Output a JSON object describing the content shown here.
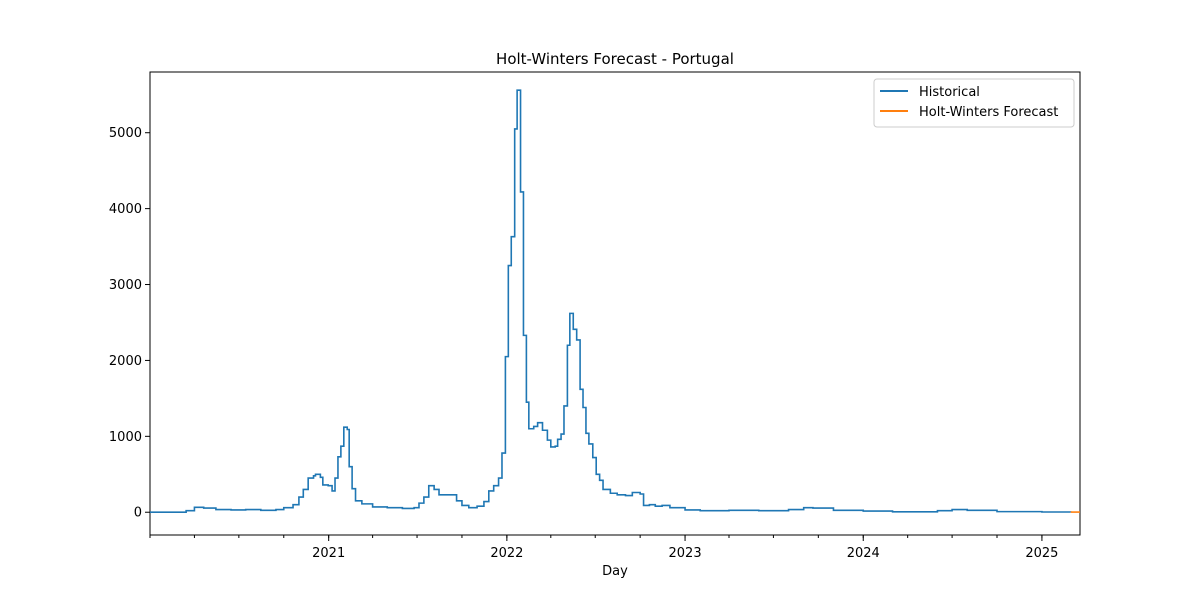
{
  "chart_data": {
    "type": "line",
    "title": "Holt-Winters Forecast - Portugal",
    "xlabel": "Day",
    "ylabel": "",
    "xlim": [
      "2020-01-01",
      "2025-03-20"
    ],
    "ylim": [
      -300,
      5800
    ],
    "x_ticks": [
      {
        "date": "2021-01-01",
        "label": "2021"
      },
      {
        "date": "2022-01-01",
        "label": "2022"
      },
      {
        "date": "2023-01-01",
        "label": "2023"
      },
      {
        "date": "2024-01-01",
        "label": "2024"
      },
      {
        "date": "2025-01-01",
        "label": "2025"
      }
    ],
    "y_ticks": [
      0,
      1000,
      2000,
      3000,
      4000,
      5000
    ],
    "grid": false,
    "legend": "top-right",
    "series": [
      {
        "name": "Historical",
        "color": "#1f77b4",
        "points": [
          [
            "2020-01-01",
            0
          ],
          [
            "2020-03-01",
            0
          ],
          [
            "2020-03-15",
            20
          ],
          [
            "2020-04-01",
            65
          ],
          [
            "2020-04-20",
            55
          ],
          [
            "2020-05-15",
            35
          ],
          [
            "2020-06-15",
            30
          ],
          [
            "2020-07-15",
            35
          ],
          [
            "2020-08-15",
            25
          ],
          [
            "2020-09-15",
            35
          ],
          [
            "2020-10-01",
            60
          ],
          [
            "2020-10-20",
            100
          ],
          [
            "2020-11-01",
            200
          ],
          [
            "2020-11-10",
            300
          ],
          [
            "2020-11-20",
            450
          ],
          [
            "2020-12-01",
            480
          ],
          [
            "2020-12-05",
            500
          ],
          [
            "2020-12-15",
            460
          ],
          [
            "2020-12-20",
            360
          ],
          [
            "2020-12-31",
            350
          ],
          [
            "2021-01-08",
            280
          ],
          [
            "2021-01-14",
            450
          ],
          [
            "2021-01-20",
            730
          ],
          [
            "2021-01-26",
            870
          ],
          [
            "2021-02-01",
            1120
          ],
          [
            "2021-02-08",
            1090
          ],
          [
            "2021-02-12",
            600
          ],
          [
            "2021-02-18",
            310
          ],
          [
            "2021-02-25",
            150
          ],
          [
            "2021-03-10",
            110
          ],
          [
            "2021-04-01",
            70
          ],
          [
            "2021-05-01",
            60
          ],
          [
            "2021-06-01",
            50
          ],
          [
            "2021-06-25",
            60
          ],
          [
            "2021-07-05",
            120
          ],
          [
            "2021-07-15",
            200
          ],
          [
            "2021-07-25",
            350
          ],
          [
            "2021-08-05",
            300
          ],
          [
            "2021-08-15",
            230
          ],
          [
            "2021-09-01",
            230
          ],
          [
            "2021-09-20",
            150
          ],
          [
            "2021-10-01",
            90
          ],
          [
            "2021-10-15",
            60
          ],
          [
            "2021-11-01",
            80
          ],
          [
            "2021-11-15",
            140
          ],
          [
            "2021-11-25",
            280
          ],
          [
            "2021-12-05",
            350
          ],
          [
            "2021-12-15",
            450
          ],
          [
            "2021-12-22",
            780
          ],
          [
            "2021-12-29",
            2050
          ],
          [
            "2022-01-04",
            3250
          ],
          [
            "2022-01-10",
            3630
          ],
          [
            "2022-01-17",
            5050
          ],
          [
            "2022-01-22",
            5560
          ],
          [
            "2022-01-29",
            4220
          ],
          [
            "2022-02-04",
            2330
          ],
          [
            "2022-02-10",
            1450
          ],
          [
            "2022-02-15",
            1100
          ],
          [
            "2022-02-25",
            1130
          ],
          [
            "2022-03-05",
            1180
          ],
          [
            "2022-03-15",
            1080
          ],
          [
            "2022-03-25",
            950
          ],
          [
            "2022-04-01",
            860
          ],
          [
            "2022-04-10",
            870
          ],
          [
            "2022-04-15",
            960
          ],
          [
            "2022-04-22",
            1030
          ],
          [
            "2022-04-28",
            1400
          ],
          [
            "2022-05-05",
            2200
          ],
          [
            "2022-05-10",
            2620
          ],
          [
            "2022-05-17",
            2410
          ],
          [
            "2022-05-24",
            2270
          ],
          [
            "2022-05-31",
            1620
          ],
          [
            "2022-06-06",
            1380
          ],
          [
            "2022-06-12",
            1040
          ],
          [
            "2022-06-18",
            900
          ],
          [
            "2022-06-26",
            720
          ],
          [
            "2022-07-03",
            500
          ],
          [
            "2022-07-10",
            420
          ],
          [
            "2022-07-17",
            300
          ],
          [
            "2022-08-01",
            250
          ],
          [
            "2022-08-15",
            230
          ],
          [
            "2022-09-01",
            220
          ],
          [
            "2022-09-15",
            260
          ],
          [
            "2022-10-01",
            240
          ],
          [
            "2022-10-08",
            90
          ],
          [
            "2022-10-20",
            100
          ],
          [
            "2022-11-01",
            80
          ],
          [
            "2022-11-15",
            90
          ],
          [
            "2022-12-01",
            60
          ],
          [
            "2023-01-01",
            30
          ],
          [
            "2023-02-01",
            20
          ],
          [
            "2023-04-01",
            25
          ],
          [
            "2023-06-01",
            20
          ],
          [
            "2023-08-01",
            35
          ],
          [
            "2023-09-01",
            60
          ],
          [
            "2023-09-20",
            55
          ],
          [
            "2023-11-01",
            25
          ],
          [
            "2024-01-01",
            15
          ],
          [
            "2024-03-01",
            5
          ],
          [
            "2024-05-01",
            5
          ],
          [
            "2024-06-01",
            20
          ],
          [
            "2024-07-01",
            35
          ],
          [
            "2024-08-01",
            25
          ],
          [
            "2024-10-01",
            8
          ],
          [
            "2025-01-01",
            3
          ],
          [
            "2025-03-01",
            2
          ]
        ]
      },
      {
        "name": "Holt-Winters Forecast",
        "color": "#ff7f0e",
        "points": [
          [
            "2025-03-01",
            2
          ],
          [
            "2025-03-20",
            2
          ]
        ]
      }
    ]
  }
}
